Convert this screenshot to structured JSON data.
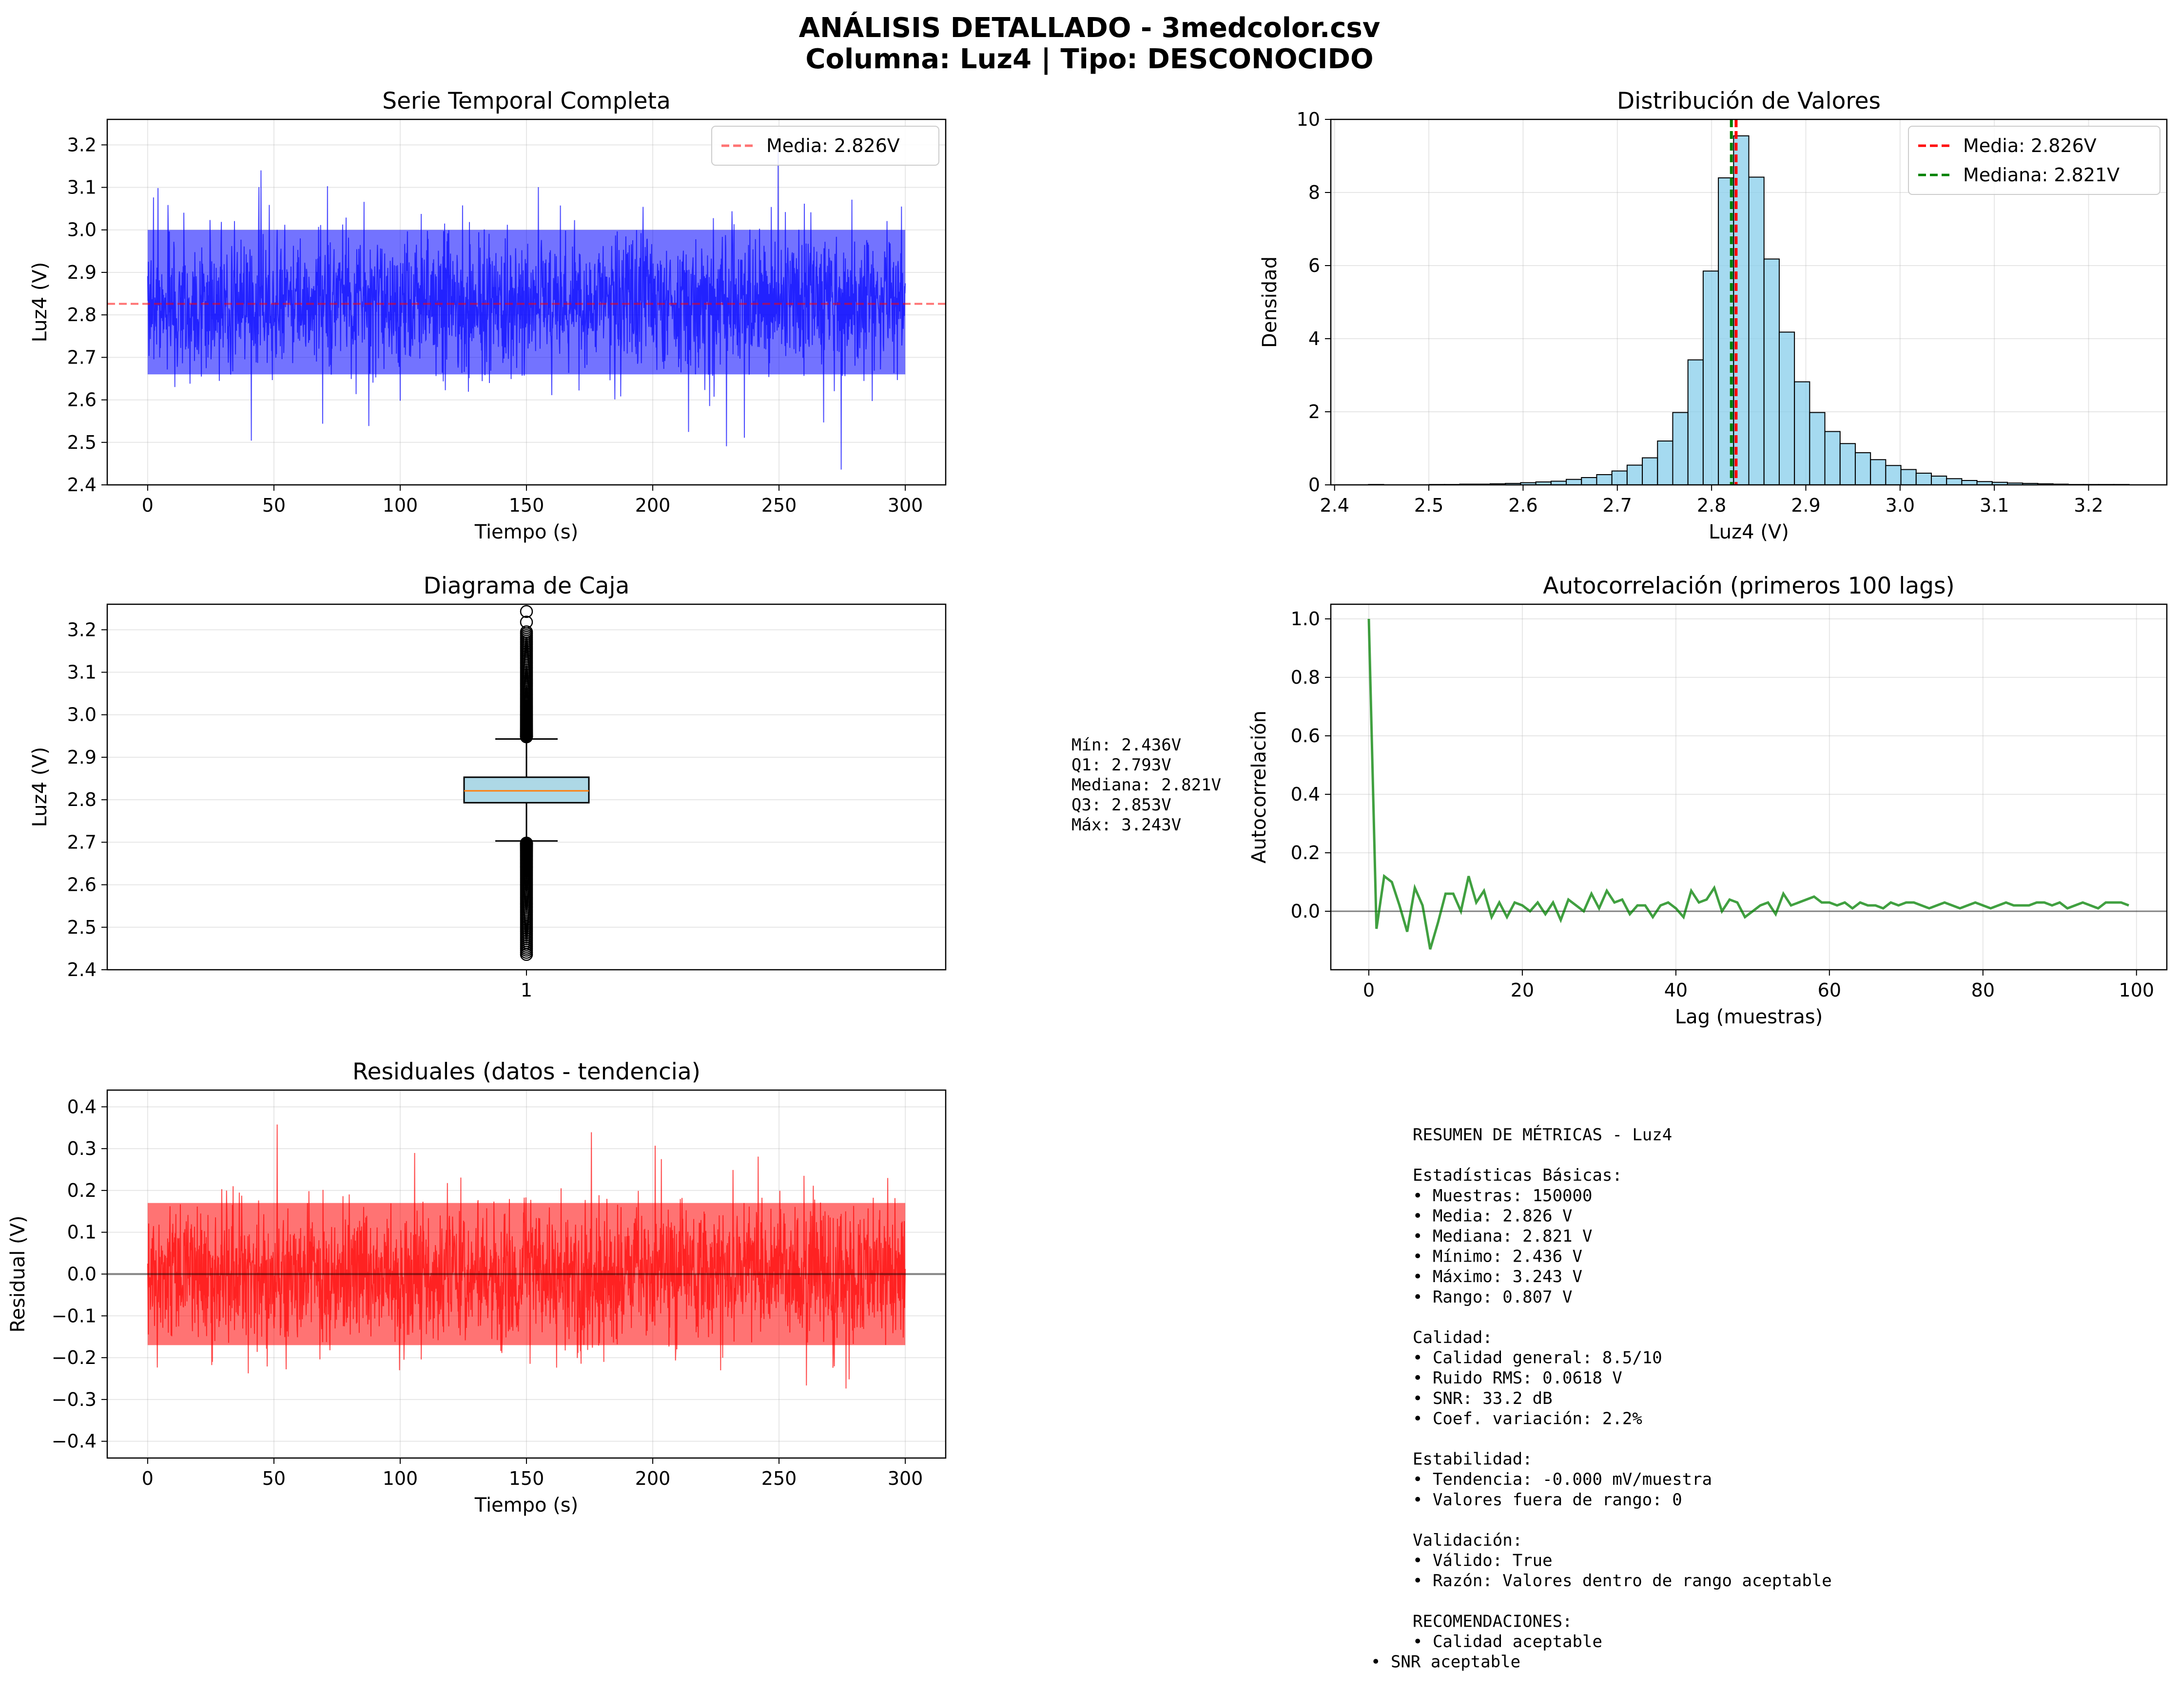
{
  "figure": {
    "title_line1": "ANÁLISIS DETALLADO - 3medcolor.csv",
    "title_line2": "Columna: Luz4 | Tipo: DESCONOCIDO"
  },
  "chart_data": [
    {
      "id": "timeseries",
      "type": "line",
      "title": "Serie Temporal Completa",
      "xlabel": "Tiempo (s)",
      "ylabel": "Luz4 (V)",
      "xlim": [
        -16,
        316
      ],
      "ylim": [
        2.4,
        3.26
      ],
      "xticks": [
        0,
        50,
        100,
        150,
        200,
        250,
        300
      ],
      "yticks": [
        2.4,
        2.5,
        2.6,
        2.7,
        2.8,
        2.9,
        3.0,
        3.1,
        3.2
      ],
      "ytick_labels": [
        "2.4",
        "2.5",
        "2.6",
        "2.7",
        "2.8",
        "2.9",
        "3.0",
        "3.1",
        "3.2"
      ],
      "series": [
        {
          "color": "#0000ff",
          "mean": 2.826,
          "std": 0.0618,
          "min": 2.436,
          "max": 3.243,
          "x_start": 0,
          "x_end": 300,
          "samples": 150000
        }
      ],
      "reference_line": {
        "y": 2.826,
        "color": "#ff0000",
        "style": "dashed"
      },
      "legend": [
        "Media: 2.826V"
      ],
      "legend_loc": "upper right",
      "grid": true
    },
    {
      "id": "histogram",
      "type": "bar",
      "title": "Distribución de Valores",
      "xlabel": "Luz4 (V)",
      "ylabel": "Densidad",
      "xlim": [
        2.396,
        3.283
      ],
      "ylim": [
        0,
        10
      ],
      "xticks": [
        2.4,
        2.5,
        2.6,
        2.7,
        2.8,
        2.9,
        3.0,
        3.1,
        3.2
      ],
      "xtick_labels": [
        "2.4",
        "2.5",
        "2.6",
        "2.7",
        "2.8",
        "2.9",
        "3.0",
        "3.1",
        "3.2"
      ],
      "yticks": [
        0,
        2,
        4,
        6,
        8,
        10
      ],
      "bin_start": 2.436,
      "bin_width": 0.01614,
      "densities": [
        0.01,
        0.0,
        0.0,
        0.0,
        0.01,
        0.01,
        0.02,
        0.02,
        0.03,
        0.04,
        0.06,
        0.08,
        0.1,
        0.15,
        0.2,
        0.28,
        0.38,
        0.54,
        0.74,
        1.2,
        1.98,
        3.42,
        5.85,
        8.4,
        9.55,
        8.42,
        6.18,
        4.18,
        2.82,
        1.98,
        1.46,
        1.13,
        0.88,
        0.69,
        0.53,
        0.42,
        0.32,
        0.24,
        0.17,
        0.12,
        0.09,
        0.07,
        0.05,
        0.04,
        0.03,
        0.02,
        0.01,
        0.01,
        0.01,
        0.01
      ],
      "bar_color": "#87ceeb",
      "vlines": [
        {
          "label": "Media: 2.826V",
          "x": 2.826,
          "color": "#ff0000"
        },
        {
          "label": "Mediana: 2.821V",
          "x": 2.821,
          "color": "#008000"
        }
      ],
      "legend_loc": "upper right",
      "grid": true
    },
    {
      "id": "boxplot",
      "type": "box",
      "title": "Diagrama de Caja",
      "ylabel": "Luz4 (V)",
      "category": "1",
      "ylim": [
        2.4,
        3.26
      ],
      "yticks": [
        2.4,
        2.5,
        2.6,
        2.7,
        2.8,
        2.9,
        3.0,
        3.1,
        3.2
      ],
      "ytick_labels": [
        "2.4",
        "2.5",
        "2.6",
        "2.7",
        "2.8",
        "2.9",
        "3.0",
        "3.1",
        "3.2"
      ],
      "min": 2.436,
      "whisker_low": 2.703,
      "q1": 2.793,
      "median": 2.821,
      "q3": 2.853,
      "whisker_high": 2.943,
      "max": 3.243,
      "box_color": "#add8e6",
      "median_color": "#ff7f0e",
      "grid": true
    },
    {
      "id": "autocorr",
      "type": "line",
      "title": "Autocorrelación (primeros 100 lags)",
      "xlabel": "Lag (muestras)",
      "ylabel": "Autocorrelación",
      "xlim": [
        -4.95,
        103.95
      ],
      "ylim": [
        -0.2,
        1.05
      ],
      "xticks": [
        0,
        20,
        40,
        60,
        80,
        100
      ],
      "yticks": [
        0.0,
        0.2,
        0.4,
        0.6,
        0.8,
        1.0
      ],
      "ytick_labels": [
        "0.0",
        "0.2",
        "0.4",
        "0.6",
        "0.8",
        "1.0"
      ],
      "values": [
        1.0,
        -0.06,
        0.12,
        0.1,
        0.02,
        -0.07,
        0.08,
        0.02,
        -0.13,
        -0.04,
        0.06,
        0.06,
        0.0,
        0.12,
        0.03,
        0.07,
        -0.02,
        0.03,
        -0.02,
        0.03,
        0.02,
        0.0,
        0.03,
        -0.01,
        0.03,
        -0.03,
        0.04,
        0.02,
        0.0,
        0.06,
        0.01,
        0.07,
        0.03,
        0.04,
        -0.01,
        0.02,
        0.02,
        -0.02,
        0.02,
        0.03,
        0.01,
        -0.02,
        0.07,
        0.03,
        0.04,
        0.08,
        0.0,
        0.04,
        0.03,
        -0.02,
        0.0,
        0.02,
        0.03,
        -0.01,
        0.06,
        0.02,
        0.03,
        0.04,
        0.05,
        0.03,
        0.03,
        0.02,
        0.03,
        0.01,
        0.03,
        0.02,
        0.02,
        0.01,
        0.03,
        0.02,
        0.03,
        0.03,
        0.02,
        0.01,
        0.02,
        0.03,
        0.02,
        0.01,
        0.02,
        0.03,
        0.02,
        0.01,
        0.02,
        0.03,
        0.02,
        0.02,
        0.02,
        0.03,
        0.03,
        0.02,
        0.03,
        0.01,
        0.02,
        0.03,
        0.02,
        0.01,
        0.03,
        0.03,
        0.03,
        0.02
      ],
      "line_color": "#008000",
      "reference_line": {
        "y": 0,
        "color": "#000000"
      },
      "grid": true
    },
    {
      "id": "residuals",
      "type": "line",
      "title": "Residuales (datos - tendencia)",
      "xlabel": "Tiempo (s)",
      "ylabel": "Residual (V)",
      "xlim": [
        -16,
        316
      ],
      "ylim": [
        -0.44,
        0.44
      ],
      "xticks": [
        0,
        50,
        100,
        150,
        200,
        250,
        300
      ],
      "yticks": [
        -0.4,
        -0.3,
        -0.2,
        -0.1,
        0.0,
        0.1,
        0.2,
        0.3,
        0.4
      ],
      "ytick_labels": [
        "−0.4",
        "−0.3",
        "−0.2",
        "−0.1",
        "0.0",
        "0.1",
        "0.2",
        "0.3",
        "0.4"
      ],
      "series": [
        {
          "color": "#ff0000",
          "mean": 0.0,
          "std": 0.0618,
          "min": -0.39,
          "max": 0.41,
          "x_start": 0,
          "x_end": 300
        }
      ],
      "reference_line": {
        "y": 0,
        "color": "#000000"
      },
      "grid": true
    }
  ],
  "box_stats_text": [
    "Mín: 2.436V",
    "Q1: 2.793V",
    "Mediana: 2.821V",
    "Q3: 2.853V",
    "Máx: 3.243V"
  ],
  "summary_text": [
    "RESUMEN DE MÉTRICAS - Luz4",
    "",
    "Estadísticas Básicas:",
    "• Muestras: 150000",
    "• Media: 2.826 V",
    "• Mediana: 2.821 V",
    "• Mínimo: 2.436 V",
    "• Máximo: 3.243 V",
    "• Rango: 0.807 V",
    "",
    "Calidad:",
    "• Calidad general: 8.5/10",
    "• Ruido RMS: 0.0618 V",
    "• SNR: 33.2 dB",
    "• Coef. variación: 2.2%",
    "",
    "Estabilidad:",
    "• Tendencia: -0.000 mV/muestra",
    "• Valores fuera de rango: 0",
    "",
    "Validación:",
    "• Válido: True",
    "• Razón: Valores dentro de rango aceptable",
    "",
    "RECOMENDACIONES:",
    "• Calidad aceptable"
  ],
  "summary_last_line": "• SNR aceptable"
}
